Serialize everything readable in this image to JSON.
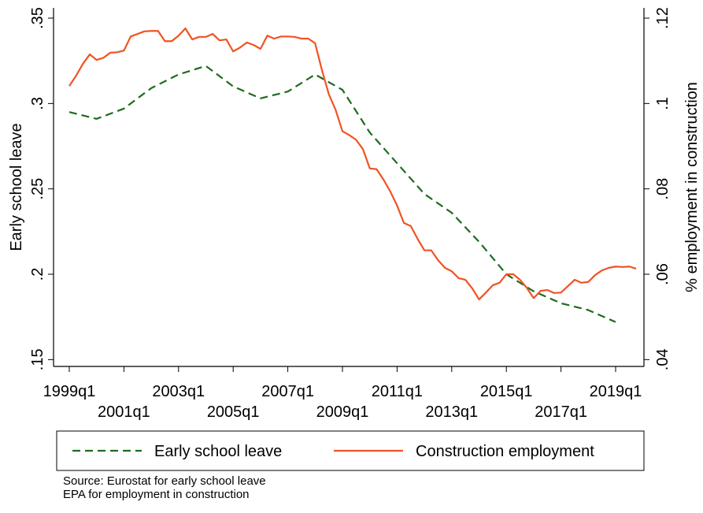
{
  "chart_data": {
    "type": "line",
    "y_label": "Early school leave",
    "y2_label": "% employment in construction",
    "categories": [
      "1999q1",
      "1999q2",
      "1999q3",
      "1999q4",
      "2000q1",
      "2000q2",
      "2000q3",
      "2000q4",
      "2001q1",
      "2001q2",
      "2001q3",
      "2001q4",
      "2002q1",
      "2002q2",
      "2002q3",
      "2002q4",
      "2003q1",
      "2003q2",
      "2003q3",
      "2003q4",
      "2004q1",
      "2004q2",
      "2004q3",
      "2004q4",
      "2005q1",
      "2005q2",
      "2005q3",
      "2005q4",
      "2006q1",
      "2006q2",
      "2006q3",
      "2006q4",
      "2007q1",
      "2007q2",
      "2007q3",
      "2007q4",
      "2008q1",
      "2008q2",
      "2008q3",
      "2008q4",
      "2009q1",
      "2009q2",
      "2009q3",
      "2009q4",
      "2010q1",
      "2010q2",
      "2010q3",
      "2010q4",
      "2011q1",
      "2011q2",
      "2011q3",
      "2011q4",
      "2012q1",
      "2012q2",
      "2012q3",
      "2012q4",
      "2013q1",
      "2013q2",
      "2013q3",
      "2013q4",
      "2014q1",
      "2014q2",
      "2014q3",
      "2014q4",
      "2015q1",
      "2015q2",
      "2015q3",
      "2015q4",
      "2016q1",
      "2016q2",
      "2016q3",
      "2016q4",
      "2017q1",
      "2017q2",
      "2017q3",
      "2017q4",
      "2018q1",
      "2018q2",
      "2018q3",
      "2018q4",
      "2019q1",
      "2019q2",
      "2019q3",
      "2019q4"
    ],
    "xticks": [
      "1999q1",
      "2001q1",
      "2003q1",
      "2005q1",
      "2007q1",
      "2009q1",
      "2011q1",
      "2013q1",
      "2015q1",
      "2017q1",
      "2019q1"
    ],
    "ylim": [
      0.146,
      0.356
    ],
    "yticks": [
      {
        "value": 0.15,
        "label": ".15"
      },
      {
        "value": 0.2,
        "label": ".2"
      },
      {
        "value": 0.25,
        "label": ".25"
      },
      {
        "value": 0.3,
        "label": ".3"
      },
      {
        "value": 0.35,
        "label": ".35"
      }
    ],
    "y2lim": [
      0.0384,
      0.1224
    ],
    "y2ticks": [
      {
        "value": 0.04,
        "label": ".04"
      },
      {
        "value": 0.06,
        "label": ".06"
      },
      {
        "value": 0.08,
        "label": ".08"
      },
      {
        "value": 0.1,
        "label": ".1"
      },
      {
        "value": 0.12,
        "label": ".12"
      }
    ],
    "series": [
      {
        "name": "Early school leave",
        "color": "#1e6b1e",
        "dash": true,
        "x": [
          "1999q1",
          "2000q1",
          "2001q1",
          "2002q1",
          "2003q1",
          "2004q1",
          "2005q1",
          "2006q1",
          "2007q1",
          "2008q1",
          "2009q1",
          "2010q1",
          "2011q1",
          "2012q1",
          "2013q1",
          "2014q1",
          "2015q1",
          "2016q1",
          "2017q1",
          "2018q1",
          "2019q1"
        ],
        "values": [
          0.295,
          0.291,
          0.297,
          0.309,
          0.317,
          0.322,
          0.31,
          0.303,
          0.307,
          0.317,
          0.308,
          0.283,
          0.265,
          0.247,
          0.236,
          0.219,
          0.2,
          0.19,
          0.183,
          0.179,
          0.172
        ]
      },
      {
        "name": "Construction employment",
        "color": "#f05323",
        "dash": false,
        "axis": "y2",
        "values": [
          0.1041,
          0.1065,
          0.1093,
          0.1115,
          0.1102,
          0.1107,
          0.1119,
          0.112,
          0.1124,
          0.1157,
          0.1163,
          0.1169,
          0.117,
          0.117,
          0.1146,
          0.1146,
          0.1159,
          0.1176,
          0.115,
          0.1156,
          0.1156,
          0.1163,
          0.1148,
          0.115,
          0.1122,
          0.1131,
          0.1143,
          0.1137,
          0.1128,
          0.1159,
          0.1152,
          0.1157,
          0.1157,
          0.1156,
          0.1152,
          0.1152,
          0.1141,
          0.1078,
          0.1022,
          0.0985,
          0.0935,
          0.0926,
          0.0915,
          0.0893,
          0.0848,
          0.0846,
          0.0822,
          0.0794,
          0.0761,
          0.072,
          0.0713,
          0.0683,
          0.0656,
          0.0656,
          0.0633,
          0.0615,
          0.0607,
          0.0591,
          0.0587,
          0.0567,
          0.0541,
          0.0557,
          0.0574,
          0.058,
          0.06,
          0.06,
          0.0587,
          0.0568,
          0.0544,
          0.0561,
          0.0563,
          0.0556,
          0.0557,
          0.0572,
          0.0587,
          0.058,
          0.0582,
          0.0598,
          0.0609,
          0.0615,
          0.0618,
          0.0617,
          0.0618,
          0.0613
        ]
      }
    ],
    "notes": [
      "Source: Eurostat for early school leave",
      "EPA for employment in construction"
    ]
  }
}
